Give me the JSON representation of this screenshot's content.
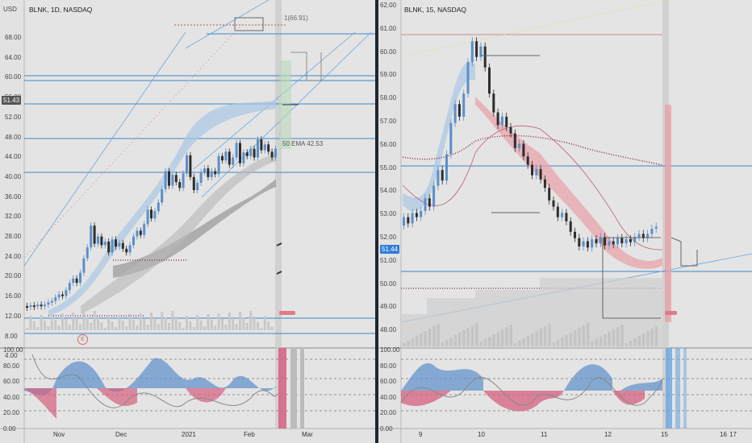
{
  "left": {
    "symbol": "BLNK, 1D, NASDAQ",
    "currency": "USD",
    "price_tag": "51.43",
    "y_ticks": [
      "68.00",
      "64.00",
      "60.00",
      "56.00",
      "52.00",
      "48.00",
      "44.00",
      "40.00",
      "36.00",
      "32.00",
      "28.00",
      "24.00",
      "20.00",
      "16.00",
      "12.00",
      "8.00",
      "4.00"
    ],
    "osc_ticks": [
      "100.00",
      "80.00",
      "60.00",
      "40.00",
      "20.00",
      "0.00"
    ],
    "x_labels": [
      "Nov",
      "Dec",
      "2021",
      "Feb",
      "Mar"
    ],
    "annotation_high": "1(66.91)",
    "ema_label": "50 EMA 42.53",
    "event_marker": "E"
  },
  "right": {
    "symbol": "BLNK, 15, NASDAQ",
    "price_tag": "51.44",
    "y_ticks": [
      "62.00",
      "61.00",
      "60.00",
      "59.00",
      "58.00",
      "57.00",
      "56.00",
      "55.00",
      "54.00",
      "53.00",
      "52.00",
      "51.00",
      "50.00",
      "49.00",
      "48.00"
    ],
    "osc_ticks": [
      "100.00",
      "80.00",
      "60.00",
      "40.00",
      "20.00",
      "0.00"
    ],
    "x_labels": [
      "9",
      "10",
      "11",
      "12",
      "15",
      "16",
      "17"
    ]
  },
  "colors": {
    "candle_up": "#5b8fc9",
    "candle_down": "#2d2d2d",
    "hline_blue": "#3d86c6",
    "band_red": "#e8a0a8",
    "band_blue": "#a9c7e4",
    "tag_dark": "#555555",
    "tag_blue": "#2f7ed8"
  }
}
